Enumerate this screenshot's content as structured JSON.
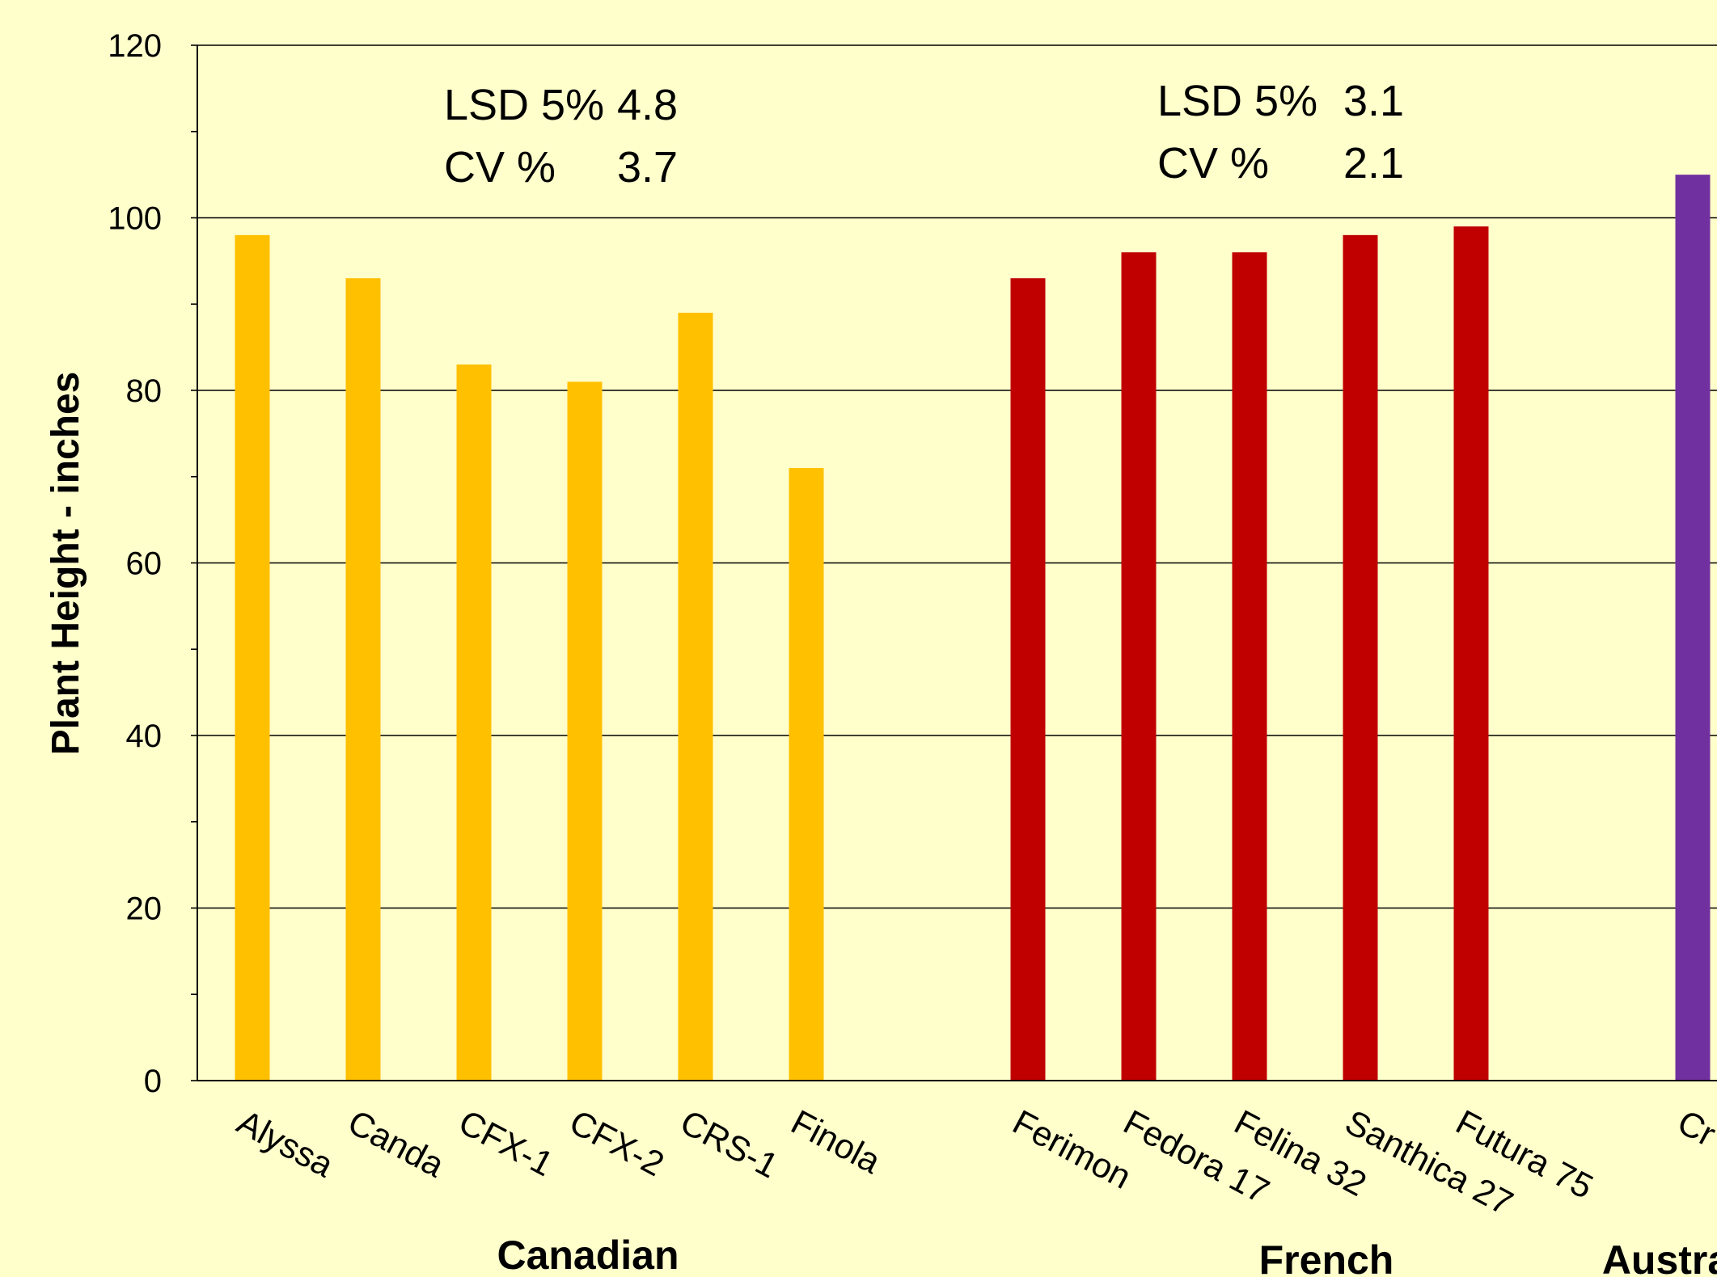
{
  "chart_data": {
    "type": "bar",
    "ylabel": "Plant Height - inches",
    "ylim": [
      0,
      120
    ],
    "yticks": [
      "0",
      "20",
      "40",
      "60",
      "80",
      "100",
      "120"
    ],
    "grid": true,
    "groups": [
      {
        "name": "Canadian",
        "color": "#FFC000",
        "categories": [
          "Alyssa",
          "Canda",
          "CFX-1",
          "CFX-2",
          "CRS-1",
          "Finola"
        ],
        "values": [
          98,
          93,
          83,
          81,
          89,
          71
        ]
      },
      {
        "name": "French",
        "color": "#C00000",
        "categories": [
          "Ferimon",
          "Fedora 17",
          "Felina 32",
          "Santhica 27",
          "Futura 75"
        ],
        "values": [
          93,
          96,
          96,
          98,
          99
        ]
      },
      {
        "name": "Austra",
        "color": "#7030A0",
        "categories": [
          "Cr"
        ],
        "values": [
          105
        ]
      }
    ],
    "annotations": [
      {
        "group": "Canadian",
        "lines": [
          [
            "LSD 5%",
            "4.8"
          ],
          [
            "CV %",
            "3.7"
          ]
        ]
      },
      {
        "group": "French",
        "lines": [
          [
            "LSD 5%",
            "3.1"
          ],
          [
            "CV %",
            "2.1"
          ]
        ]
      }
    ]
  }
}
